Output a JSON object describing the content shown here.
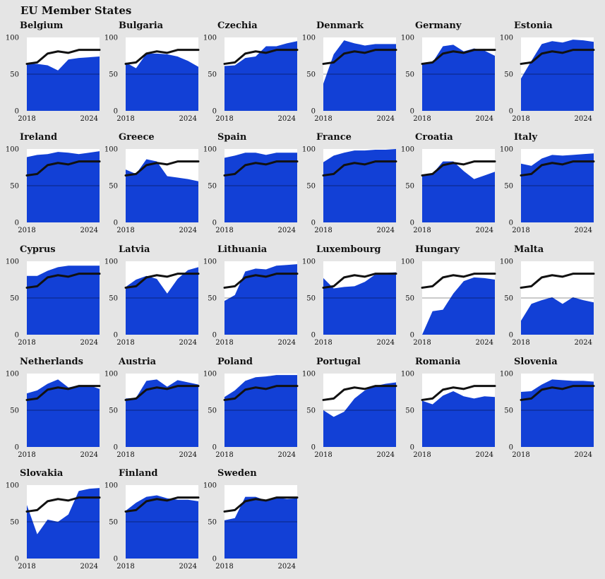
{
  "title": "EU Member States",
  "colors": {
    "area": "#1240d6",
    "line": "#111111",
    "background": "#e5e5e5",
    "plot_bg": "#ffffff"
  },
  "chart_data": {
    "type": "area",
    "facets": "small-multiples, 6 columns",
    "x": [
      2018,
      2019,
      2020,
      2021,
      2022,
      2023,
      2024,
      2025
    ],
    "x_ticks": [
      "2018",
      "2024"
    ],
    "y_ticks": [
      "0",
      "50",
      "100"
    ],
    "ylim": [
      0,
      100
    ],
    "grid": "horizontal line at 50",
    "reference_line": {
      "description": "EU average (black line, same in every panel)",
      "values": [
        64,
        66,
        78,
        81,
        79,
        83,
        83,
        83
      ]
    },
    "panels": [
      {
        "name": "Belgium",
        "values": [
          64,
          64,
          62,
          55,
          70,
          72,
          73,
          74
        ]
      },
      {
        "name": "Bulgaria",
        "values": [
          66,
          58,
          78,
          78,
          77,
          74,
          68,
          60
        ]
      },
      {
        "name": "Czechia",
        "values": [
          61,
          62,
          72,
          74,
          88,
          88,
          92,
          95
        ]
      },
      {
        "name": "Denmark",
        "values": [
          37,
          77,
          96,
          92,
          89,
          91,
          91,
          91
        ]
      },
      {
        "name": "Germany",
        "values": [
          64,
          66,
          88,
          90,
          81,
          85,
          82,
          75
        ]
      },
      {
        "name": "Estonia",
        "values": [
          44,
          68,
          91,
          95,
          93,
          97,
          96,
          94
        ]
      },
      {
        "name": "Ireland",
        "values": [
          89,
          92,
          93,
          96,
          95,
          93,
          95,
          97
        ]
      },
      {
        "name": "Greece",
        "values": [
          72,
          66,
          86,
          83,
          63,
          61,
          59,
          56
        ]
      },
      {
        "name": "Spain",
        "values": [
          88,
          91,
          95,
          95,
          92,
          95,
          95,
          95
        ]
      },
      {
        "name": "France",
        "values": [
          82,
          91,
          95,
          98,
          98,
          99,
          99,
          100
        ]
      },
      {
        "name": "Croatia",
        "values": [
          64,
          66,
          83,
          83,
          70,
          59,
          64,
          69
        ]
      },
      {
        "name": "Italy",
        "values": [
          80,
          77,
          87,
          92,
          91,
          92,
          93,
          94
        ]
      },
      {
        "name": "Cyprus",
        "values": [
          80,
          80,
          87,
          92,
          94,
          94,
          94,
          94
        ]
      },
      {
        "name": "Latvia",
        "values": [
          65,
          75,
          80,
          76,
          56,
          76,
          88,
          92
        ]
      },
      {
        "name": "Lithuania",
        "values": [
          46,
          54,
          86,
          90,
          89,
          94,
          95,
          96
        ]
      },
      {
        "name": "Luxembourg",
        "values": [
          77,
          63,
          65,
          66,
          72,
          82,
          84,
          85
        ]
      },
      {
        "name": "Hungary",
        "values": [
          0,
          32,
          34,
          56,
          73,
          78,
          77,
          75
        ]
      },
      {
        "name": "Malta",
        "values": [
          19,
          42,
          47,
          51,
          42,
          51,
          47,
          44
        ]
      },
      {
        "name": "Netherlands",
        "values": [
          73,
          77,
          86,
          92,
          81,
          84,
          84,
          79
        ]
      },
      {
        "name": "Austria",
        "values": [
          66,
          67,
          90,
          92,
          82,
          91,
          88,
          85
        ]
      },
      {
        "name": "Poland",
        "values": [
          68,
          77,
          90,
          95,
          96,
          98,
          98,
          98
        ]
      },
      {
        "name": "Portugal",
        "values": [
          50,
          41,
          48,
          66,
          77,
          83,
          86,
          88
        ]
      },
      {
        "name": "Romania",
        "values": [
          63,
          58,
          70,
          76,
          69,
          66,
          69,
          68
        ]
      },
      {
        "name": "Slovenia",
        "values": [
          75,
          76,
          85,
          92,
          91,
          90,
          90,
          89
        ]
      },
      {
        "name": "Slovakia",
        "values": [
          73,
          33,
          53,
          50,
          60,
          92,
          95,
          96
        ]
      },
      {
        "name": "Finland",
        "values": [
          65,
          76,
          84,
          86,
          82,
          80,
          80,
          78
        ]
      },
      {
        "name": "Sweden",
        "values": [
          52,
          55,
          84,
          84,
          79,
          83,
          81,
          82
        ]
      }
    ]
  }
}
